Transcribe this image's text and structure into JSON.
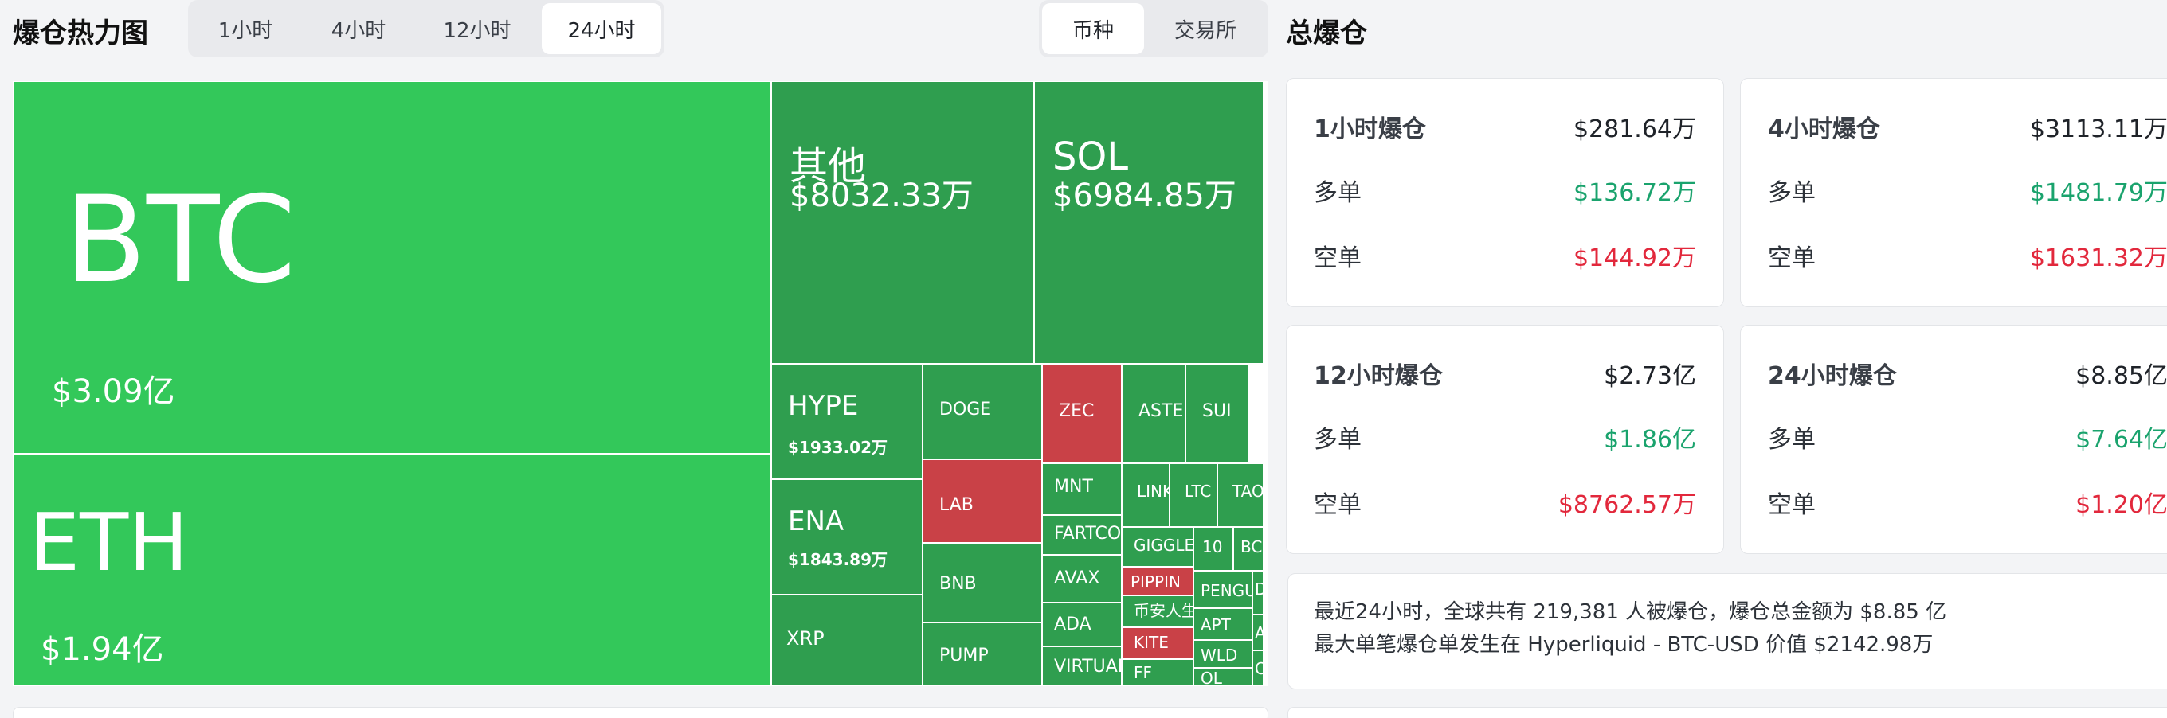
{
  "header": {
    "title": "爆仓热力图",
    "time_tabs": [
      "1小时",
      "4小时",
      "12小时",
      "24小时"
    ],
    "active_time_tab": "24小时",
    "group_tabs": [
      "币种",
      "交易所"
    ],
    "active_group_tab": "币种"
  },
  "treemap": {
    "tiles": [
      {
        "name": "BTC",
        "value": "$3.09亿",
        "color": "#33c85a"
      },
      {
        "name": "ETH",
        "value": "$1.94亿",
        "color": "#33c85a"
      },
      {
        "name": "其他",
        "value": "$8032.33万",
        "color": "#2f9e4f"
      },
      {
        "name": "SOL",
        "value": "$6984.85万",
        "color": "#2f9e4f"
      },
      {
        "name": "HYPE",
        "value": "$1933.02万",
        "color": "#2f9e4f"
      },
      {
        "name": "ENA",
        "value": "$1843.89万",
        "color": "#2f9e4f"
      },
      {
        "name": "XRP",
        "value": "",
        "color": "#2f9e4f"
      },
      {
        "name": "DOGE",
        "value": "",
        "color": "#2f9e4f"
      },
      {
        "name": "LAB",
        "value": "",
        "color": "#c94147"
      },
      {
        "name": "BNB",
        "value": "",
        "color": "#2f9e4f"
      },
      {
        "name": "PUMP",
        "value": "",
        "color": "#2f9e4f"
      },
      {
        "name": "ZEC",
        "value": "",
        "color": "#c94147"
      },
      {
        "name": "ASTER",
        "value": "",
        "color": "#2f9e4f"
      },
      {
        "name": "SUI",
        "value": "",
        "color": "#2f9e4f"
      },
      {
        "name": "MNT",
        "value": "",
        "color": "#2f9e4f"
      },
      {
        "name": "FARTCOIN",
        "value": "",
        "color": "#2f9e4f"
      },
      {
        "name": "AVAX",
        "value": "",
        "color": "#2f9e4f"
      },
      {
        "name": "ADA",
        "value": "",
        "color": "#2f9e4f"
      },
      {
        "name": "VIRTUAL",
        "value": "",
        "color": "#2f9e4f"
      },
      {
        "name": "LINK",
        "value": "",
        "color": "#2f9e4f"
      },
      {
        "name": "LTC",
        "value": "",
        "color": "#2f9e4f"
      },
      {
        "name": "TAO",
        "value": "",
        "color": "#2f9e4f"
      },
      {
        "name": "GIGGLE",
        "value": "",
        "color": "#2f9e4f"
      },
      {
        "name": "10",
        "value": "",
        "color": "#2f9e4f"
      },
      {
        "name": "BC",
        "value": "",
        "color": "#2f9e4f"
      },
      {
        "name": "PIPPIN",
        "value": "",
        "color": "#c94147"
      },
      {
        "name": "币安人生",
        "value": "",
        "color": "#2f9e4f"
      },
      {
        "name": "KITE",
        "value": "",
        "color": "#c94147"
      },
      {
        "name": "FF",
        "value": "",
        "color": "#2f9e4f"
      },
      {
        "name": "PENGU",
        "value": "",
        "color": "#2f9e4f"
      },
      {
        "name": "APT",
        "value": "",
        "color": "#2f9e4f"
      },
      {
        "name": "WLD",
        "value": "",
        "color": "#2f9e4f"
      },
      {
        "name": "OL",
        "value": "",
        "color": "#2f9e4f"
      },
      {
        "name": "D",
        "value": "",
        "color": "#2f9e4f"
      },
      {
        "name": "A",
        "value": "",
        "color": "#2f9e4f"
      },
      {
        "name": "O",
        "value": "",
        "color": "#2f9e4f"
      }
    ]
  },
  "summary": {
    "title": "总爆仓",
    "cards": [
      {
        "label": "1小时爆仓",
        "total": "$281.64万",
        "long_label": "多单",
        "long": "$136.72万",
        "short_label": "空单",
        "short": "$144.92万"
      },
      {
        "label": "4小时爆仓",
        "total": "$3113.11万",
        "long_label": "多单",
        "long": "$1481.79万",
        "short_label": "空单",
        "short": "$1631.32万"
      },
      {
        "label": "12小时爆仓",
        "total": "$2.73亿",
        "long_label": "多单",
        "long": "$1.86亿",
        "short_label": "空单",
        "short": "$8762.57万"
      },
      {
        "label": "24小时爆仓",
        "total": "$8.85亿",
        "long_label": "多单",
        "long": "$7.64亿",
        "short_label": "空单",
        "short": "$1.20亿"
      }
    ],
    "info_line1": "最近24小时，全球共有 219,381 人被爆仓，爆仓总金额为 $8.85 亿",
    "info_line2": "最大单笔爆仓单发生在 Hyperliquid - BTC-USD 价值 $2142.98万"
  }
}
